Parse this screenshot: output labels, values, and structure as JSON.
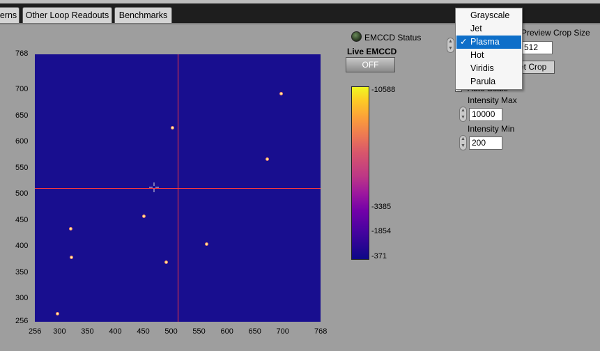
{
  "tabs": [
    {
      "label": "erns"
    },
    {
      "label": "Other Loop Readouts"
    },
    {
      "label": "Benchmarks"
    }
  ],
  "emccd_status": {
    "label": "EMCCD Status",
    "led": "off"
  },
  "live_emccd": {
    "label": "Live EMCCD",
    "button": "OFF"
  },
  "plot": {
    "x_ticks": [
      "256",
      "300",
      "350",
      "400",
      "450",
      "500",
      "550",
      "600",
      "650",
      "700",
      "768"
    ],
    "y_ticks": [
      "768",
      "700",
      "650",
      "600",
      "550",
      "500",
      "450",
      "400",
      "350",
      "300",
      "256"
    ],
    "cursor": {
      "x": 510,
      "y": 510
    },
    "spots": [
      {
        "x": 697,
        "y": 693
      },
      {
        "x": 503,
        "y": 627
      },
      {
        "x": 672,
        "y": 567
      },
      {
        "x": 451,
        "y": 458
      },
      {
        "x": 320,
        "y": 434
      },
      {
        "x": 564,
        "y": 405
      },
      {
        "x": 322,
        "y": 379
      },
      {
        "x": 492,
        "y": 370
      },
      {
        "x": 296,
        "y": 272
      }
    ],
    "background_color": "#180e8f",
    "cursor_color": "#ff3a3a"
  },
  "colorbar": {
    "colormap": "Plasma",
    "ticks": [
      {
        "label": "10588",
        "value": 10588
      },
      {
        "label": "3385",
        "value": 3385
      },
      {
        "label": "1854",
        "value": 1854
      },
      {
        "label": "371",
        "value": 371
      }
    ]
  },
  "preview_crop": {
    "label": "Preview Crop Size",
    "value": "512",
    "set_button": "et Crop"
  },
  "auto_scale": {
    "label": "Auto Scale",
    "checked": false
  },
  "intensity_max": {
    "label": "Intensity Max",
    "value": "10000"
  },
  "intensity_min": {
    "label": "Intensity Min",
    "value": "200"
  },
  "colormap_menu": {
    "items": [
      "Grayscale",
      "Jet",
      "Plasma",
      "Hot",
      "Viridis",
      "Parula"
    ],
    "selected": "Plasma",
    "check_glyph": "✓",
    "highlight_color": "#0e6fc9"
  }
}
